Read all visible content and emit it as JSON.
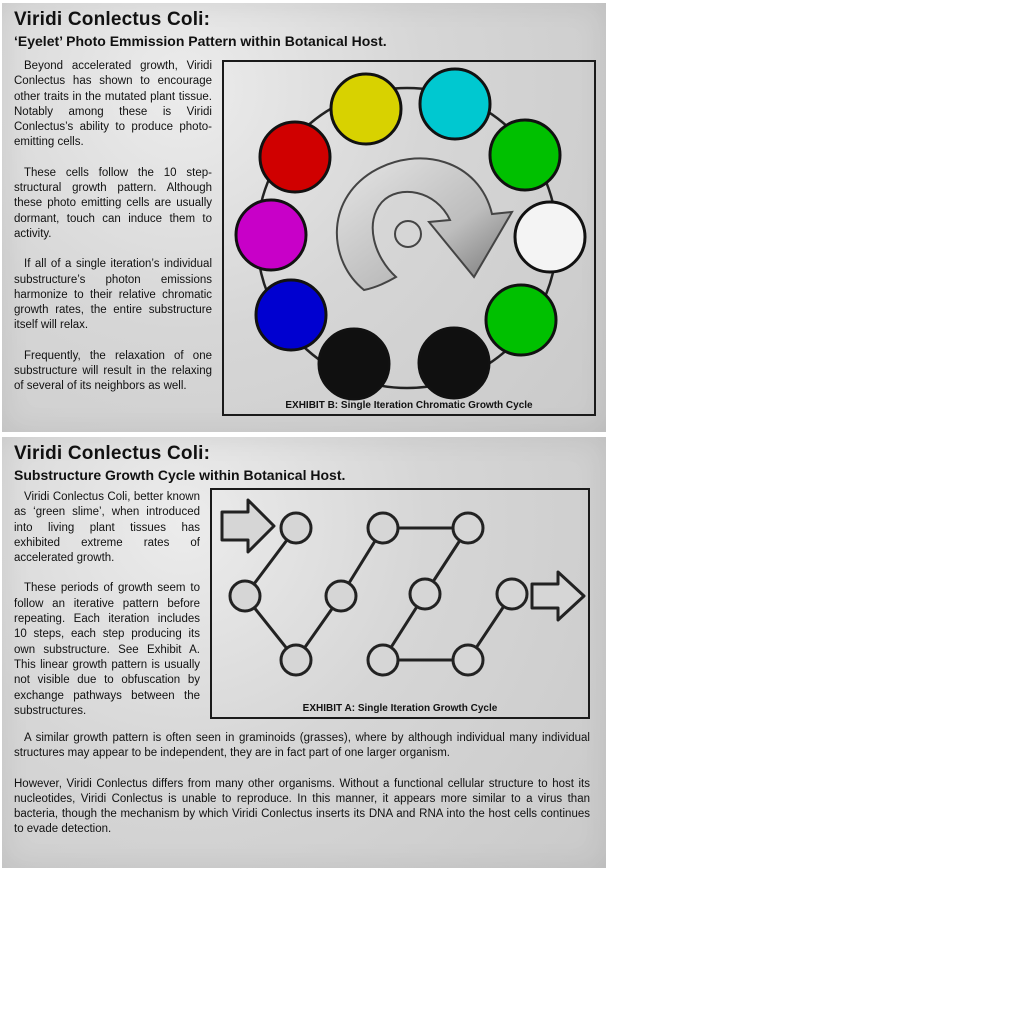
{
  "panel_top": {
    "title": "Viridi Conlectus Coli:",
    "subtitle": "‘Eyelet’ Photo Emmission Pattern within Botanical Host.",
    "paragraphs": [
      "Beyond accelerated growth, Viridi Conlectus has shown to encourage other traits in the mutated plant tissue. Notably among these is Viridi Conlectus’s ability to produce photo-emitting cells.",
      "These cells follow the 10 step-structural growth pattern. Although these photo emitting cells are usually dormant, touch can induce them to activity.",
      "If all of a single iteration’s individual substructure’s photon emissions harmonize to their relative chromatic growth rates, the entire substructure itself will relax.",
      "Frequently, the relaxation of one substructure will result in the relaxing of several of its neighbors as well."
    ],
    "exhibit_caption": "EXHIBIT B: Single Iteration Chromatic Growth Cycle",
    "cell_colors": [
      "#d8d200",
      "#00c8d0",
      "#00c000",
      "#f4f4f4",
      "#00c000",
      "#101010",
      "#101010",
      "#0000d0",
      "#c800c8",
      "#d00000"
    ]
  },
  "panel_bottom": {
    "title": "Viridi Conlectus Coli:",
    "subtitle": "Substructure Growth Cycle within Botanical Host.",
    "paragraphs": [
      "Viridi Conlectus Coli, better known as ‘green slime’, when introduced into living plant tissues has exhibited extreme rates of accelerated growth.",
      "These periods of growth seem to follow an iterative pattern before repeating. Each iteration includes 10 steps, each step producing its own substructure. See Exhibit A. This linear growth pattern is usually not visible due to obfuscation by exchange pathways between the substructures."
    ],
    "wide_paragraphs": [
      "A similar growth pattern is often seen in graminoids (grasses), where by although individual many individual structures may appear to be independent, they are in fact part of one larger organism.",
      "However, Viridi Conlectus differs from many other organisms. Without a functional cellular structure to host its nucleotides, Viridi Conlectus is unable to reproduce. In this manner, it appears more similar to a virus than bacteria, though the mechanism by which  Viridi Conlectus inserts its DNA and RNA into the host cells continues to evade detection."
    ],
    "exhibit_caption": "EXHIBIT A: Single Iteration Growth Cycle"
  }
}
